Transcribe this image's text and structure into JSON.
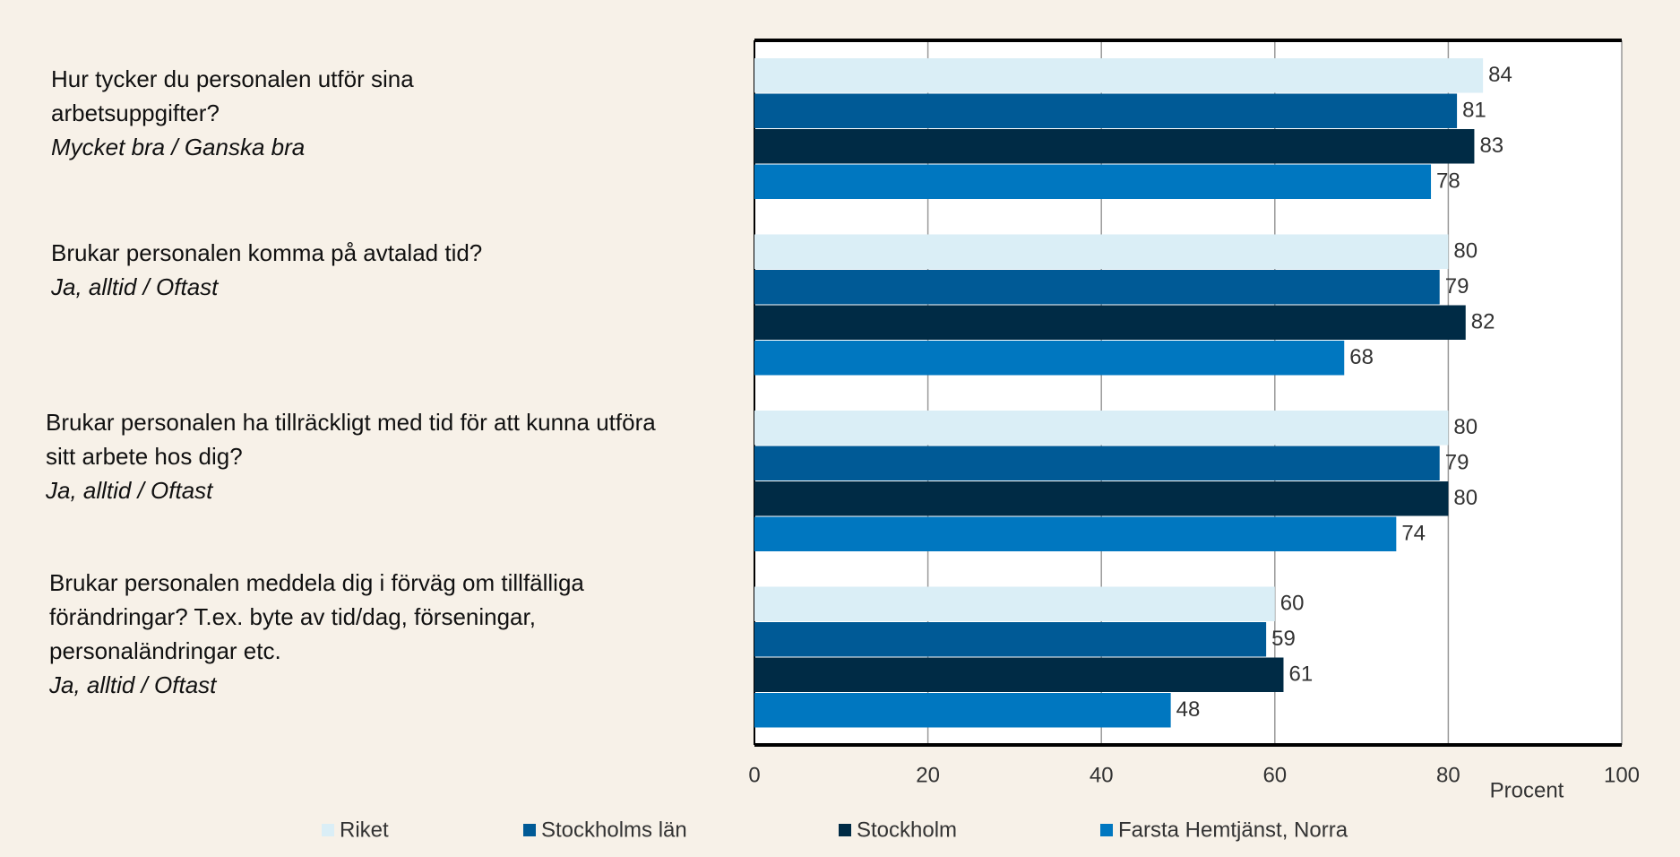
{
  "chart_data": {
    "type": "bar",
    "orientation": "horizontal",
    "categories": [
      "Hur tycker du personalen utför sina arbetsuppgifter?",
      "Brukar personalen komma på avtalad tid?",
      "Brukar personalen ha tillräckligt med tid för att kunna utföra sitt arbete hos dig?",
      "Brukar personalen meddela dig i förväg om tillfälliga förändringar? T.ex. byte av tid/dag, förseningar, personaländringar etc."
    ],
    "category_answers": [
      "Mycket bra / Ganska bra",
      "Ja, alltid / Oftast",
      "Ja, alltid / Oftast",
      "Ja, alltid / Oftast"
    ],
    "series": [
      {
        "name": "Riket",
        "color": "#daeef6",
        "values": [
          84,
          80,
          80,
          60
        ]
      },
      {
        "name": "Stockholms län",
        "color": "#005a96",
        "values": [
          81,
          79,
          79,
          59
        ]
      },
      {
        "name": "Stockholm",
        "color": "#002b45",
        "values": [
          83,
          82,
          80,
          61
        ]
      },
      {
        "name": "Farsta Hemtjänst, Norra",
        "color": "#0077c0",
        "values": [
          78,
          68,
          74,
          48
        ]
      }
    ],
    "xlabel": "Procent",
    "xlim": [
      0,
      100
    ],
    "xticks": [
      0,
      20,
      40,
      60,
      80,
      100
    ],
    "grid": true,
    "legend": "bottom"
  }
}
